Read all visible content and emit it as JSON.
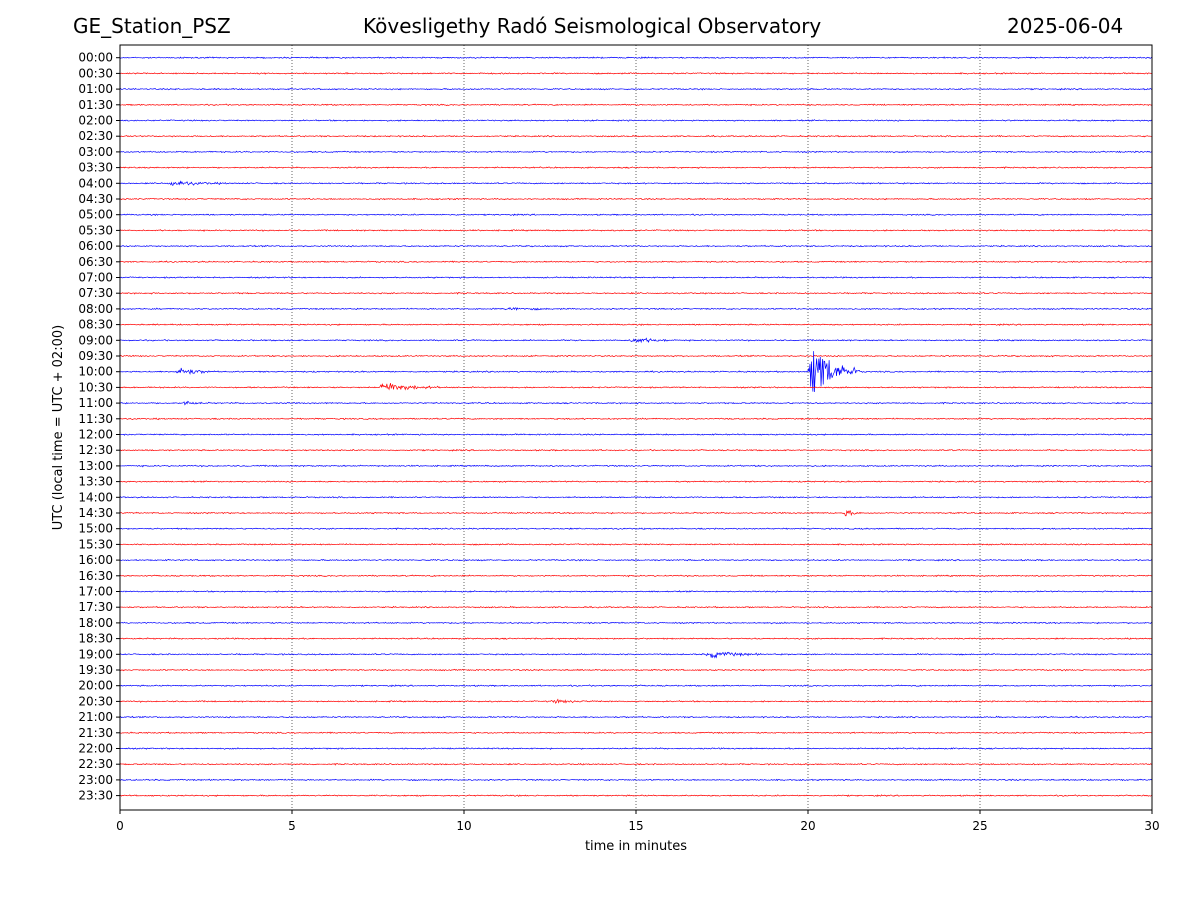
{
  "header": {
    "station": "GE_Station_PSZ",
    "observatory": "Kövesligethy Radó Seismological Observatory",
    "date": "2025-06-04"
  },
  "chart_data": {
    "type": "line",
    "title": "Kövesligethy Radó Seismological Observatory",
    "xlabel": "time in minutes",
    "ylabel": "UTC (local time = UTC + 02:00)",
    "xlim": [
      0,
      30
    ],
    "xticks": [
      "0",
      "5",
      "10",
      "15",
      "20",
      "25",
      "30"
    ],
    "grid": "vertical dotted at 5-minute ticks",
    "colors": {
      "even_rows": "#0000ff",
      "odd_rows": "#ff0000"
    },
    "rows": [
      "00:00",
      "00:30",
      "01:00",
      "01:30",
      "02:00",
      "02:30",
      "03:00",
      "03:30",
      "04:00",
      "04:30",
      "05:00",
      "05:30",
      "06:00",
      "06:30",
      "07:00",
      "07:30",
      "08:00",
      "08:30",
      "09:00",
      "09:30",
      "10:00",
      "10:30",
      "11:00",
      "11:30",
      "12:00",
      "12:30",
      "13:00",
      "13:30",
      "14:00",
      "14:30",
      "15:00",
      "15:30",
      "16:00",
      "16:30",
      "17:00",
      "17:30",
      "18:00",
      "18:30",
      "19:00",
      "19:30",
      "20:00",
      "20:30",
      "21:00",
      "21:30",
      "22:00",
      "22:30",
      "23:00",
      "23:30"
    ],
    "events": [
      {
        "row": "04:00",
        "start_min": 1.3,
        "end_min": 3.2,
        "amplitude": 0.25
      },
      {
        "row": "08:00",
        "start_min": 11.2,
        "end_min": 12.5,
        "amplitude": 0.2
      },
      {
        "row": "09:00",
        "start_min": 14.8,
        "end_min": 16.2,
        "amplitude": 0.3
      },
      {
        "row": "10:00",
        "start_min": 1.6,
        "end_min": 2.8,
        "amplitude": 0.5
      },
      {
        "row": "10:00",
        "start_min": 20.0,
        "end_min": 21.5,
        "amplitude": 3.4
      },
      {
        "row": "10:30",
        "start_min": 7.5,
        "end_min": 9.3,
        "amplitude": 0.6
      },
      {
        "row": "11:00",
        "start_min": 1.8,
        "end_min": 2.6,
        "amplitude": 0.2
      },
      {
        "row": "14:30",
        "start_min": 21.0,
        "end_min": 21.6,
        "amplitude": 0.4
      },
      {
        "row": "19:00",
        "start_min": 17.0,
        "end_min": 18.8,
        "amplitude": 0.35
      },
      {
        "row": "20:30",
        "start_min": 12.5,
        "end_min": 14.0,
        "amplitude": 0.15
      }
    ]
  }
}
